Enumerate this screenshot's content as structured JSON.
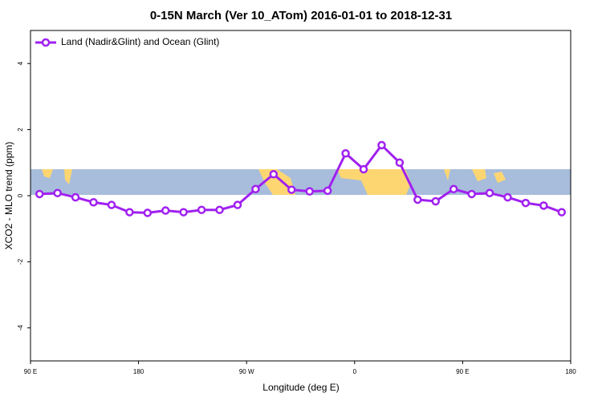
{
  "chart_data": {
    "type": "line",
    "title": "0-15N March (Ver 10_ATom)   2016-01-01 to 2018-12-31",
    "x_label": "Longitude (deg E)",
    "y_label": "XCO2 - MLO trend (ppm)",
    "x": [
      97.5,
      112.5,
      127.5,
      142.5,
      157.5,
      172.5,
      187.5,
      202.5,
      217.5,
      232.5,
      247.5,
      262.5,
      277.5,
      292.5,
      307.5,
      322.5,
      337.5,
      352.5,
      367.5,
      382.5,
      397.5,
      412.5,
      427.5,
      442.5,
      457.5,
      472.5,
      487.5,
      502.5,
      517.5,
      532.5
    ],
    "series": [
      {
        "name": "Land (Nadir&Glint) and Ocean (Glint)",
        "color": "#a020f0",
        "values": [
          0.05,
          0.08,
          -0.05,
          -0.2,
          -0.28,
          -0.5,
          -0.52,
          -0.45,
          -0.5,
          -0.43,
          -0.43,
          -0.28,
          0.2,
          0.65,
          0.18,
          0.13,
          0.15,
          1.28,
          0.8,
          1.53,
          1.0,
          -0.12,
          -0.17,
          0.2,
          0.05,
          0.08,
          -0.05,
          -0.22,
          -0.3,
          -0.5
        ]
      }
    ],
    "xlim": [
      90,
      540
    ],
    "xticks": [
      {
        "value": 90,
        "label": "90 E"
      },
      180,
      {
        "value": 270,
        "label": "90 W"
      },
      {
        "value": 360,
        "label": "0"
      },
      {
        "value": 450,
        "label": "90 E"
      },
      {
        "value": 540,
        "label": "180"
      }
    ],
    "ylim": [
      -5,
      5
    ],
    "yticks": [
      -4,
      -2,
      0,
      2,
      4
    ],
    "legend": "upper left"
  }
}
